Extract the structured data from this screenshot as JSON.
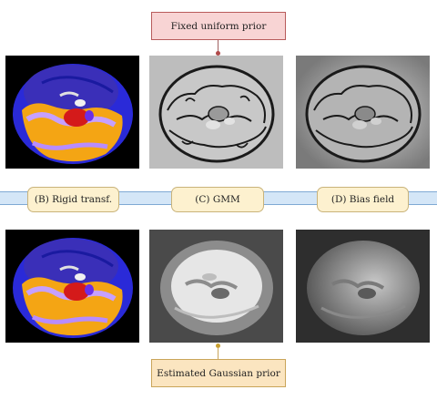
{
  "top_prior_label": "Fixed uniform prior",
  "bottom_prior_label": "Estimated Gaussian prior",
  "stage_labels": {
    "rigid": "(B) Rigid transf.",
    "gmm": "(C) GMM",
    "bias": "(D) Bias field"
  },
  "colors": {
    "prior_box_fill": "#f8d4d4",
    "gaussian_box_fill": "#fbe5c0",
    "stage_label_fill": "#fdf1cf",
    "band_fill": "#d4e6f7"
  },
  "panels": [
    {
      "row": "top",
      "stage": "rigid",
      "content": "color-coded brain segmentation"
    },
    {
      "row": "top",
      "stage": "gmm",
      "content": "synthetic grayscale brain with dark outlines"
    },
    {
      "row": "top",
      "stage": "bias",
      "content": "grayscale brain with intensity bias"
    },
    {
      "row": "bottom",
      "stage": "rigid",
      "content": "color-coded brain segmentation"
    },
    {
      "row": "bottom",
      "stage": "gmm",
      "content": "synthetic grayscale brain"
    },
    {
      "row": "bottom",
      "stage": "bias",
      "content": "grayscale brain with intensity bias"
    }
  ]
}
